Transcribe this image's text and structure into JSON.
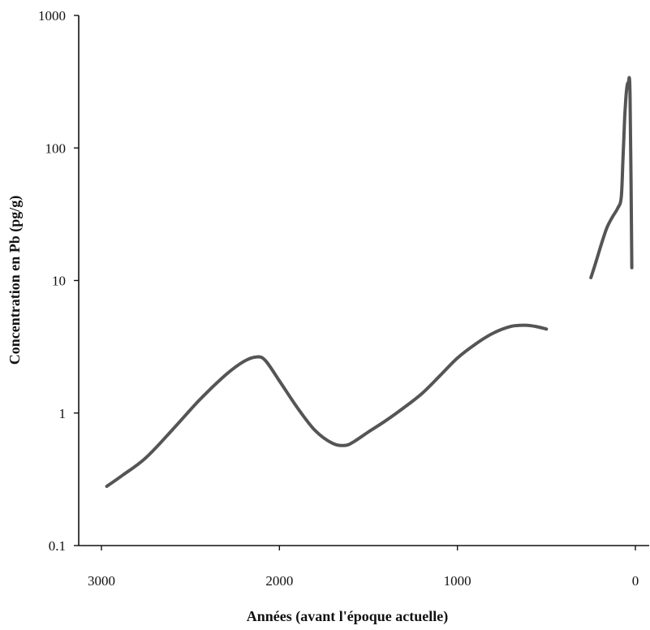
{
  "chart_data": {
    "type": "line",
    "xlabel": "Années  (avant l'époque actuelle)",
    "ylabel": "Concentration en Pb (pg/g)",
    "x_reversed": true,
    "y_scale": "log",
    "xlim": [
      3100,
      -100
    ],
    "ylim": [
      0.1,
      1000
    ],
    "x_ticks": [
      "3000",
      "2000",
      "1000",
      "0"
    ],
    "y_ticks": [
      "1000",
      "100",
      "10",
      "1",
      "0.1"
    ],
    "grid": false,
    "series": [
      {
        "x": [
          2970,
          2880,
          2750,
          2600,
          2450,
          2300,
          2200,
          2130,
          2080,
          2000,
          1900,
          1800,
          1700,
          1630,
          1580,
          1500,
          1400,
          1300,
          1200,
          1100,
          1000,
          900,
          800,
          700,
          620,
          560,
          500
        ],
        "values": [
          0.28,
          0.34,
          0.46,
          0.75,
          1.25,
          1.95,
          2.45,
          2.65,
          2.5,
          1.75,
          1.1,
          0.74,
          0.59,
          0.57,
          0.61,
          0.72,
          0.88,
          1.1,
          1.4,
          1.9,
          2.6,
          3.3,
          4.0,
          4.5,
          4.6,
          4.5,
          4.3
        ]
      },
      {
        "x": [
          250,
          220,
          190,
          160,
          130,
          100,
          80,
          70,
          60,
          50,
          40,
          30,
          20
        ],
        "values": [
          10.5,
          14,
          19,
          25,
          30,
          35,
          42,
          80,
          170,
          270,
          310,
          250,
          12.5
        ]
      }
    ]
  }
}
